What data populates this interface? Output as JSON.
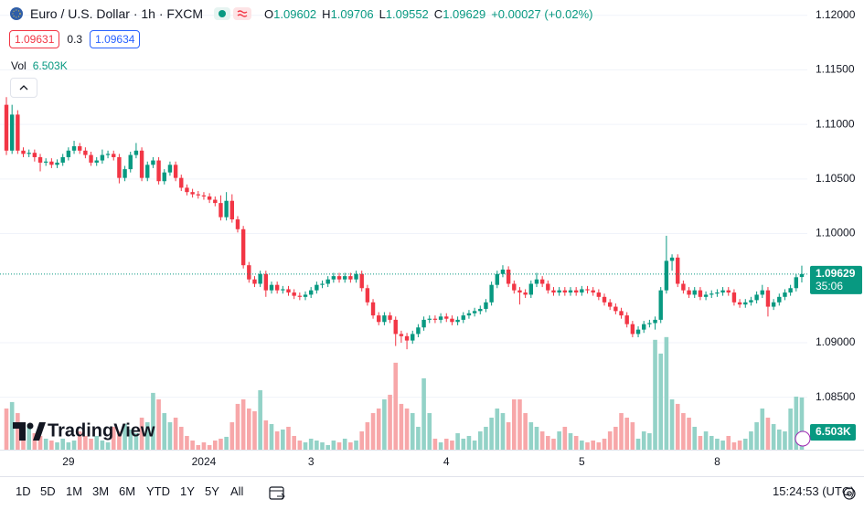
{
  "header": {
    "symbol": "Euro / U.S. Dollar · 1h · FXCM",
    "ohlc_labels": [
      "O",
      "H",
      "L",
      "C"
    ],
    "change": "+0.00027 (+0.02%)",
    "bid": 1.09631,
    "spread": 0.3,
    "ask": 1.09634,
    "volume_label": "Vol"
  },
  "logo": "TradingView",
  "toolbar": {
    "ranges": [
      "1D",
      "5D",
      "1M",
      "3M",
      "6M",
      "YTD",
      "1Y",
      "5Y",
      "All"
    ],
    "clock": "15:24:53 (UTC)"
  },
  "chart_data": {
    "type": "candlestick",
    "categories": [
      null,
      null,
      null,
      null,
      null,
      null,
      null,
      null,
      null,
      null,
      null,
      "29",
      null,
      null,
      null,
      null,
      null,
      null,
      null,
      null,
      null,
      null,
      null,
      null,
      null,
      null,
      null,
      null,
      null,
      null,
      null,
      null,
      null,
      null,
      null,
      "2024",
      null,
      null,
      null,
      null,
      null,
      null,
      null,
      null,
      null,
      null,
      null,
      null,
      null,
      null,
      null,
      null,
      null,
      null,
      "3",
      null,
      null,
      null,
      null,
      null,
      null,
      null,
      null,
      null,
      null,
      null,
      null,
      null,
      null,
      null,
      null,
      null,
      null,
      null,
      null,
      null,
      null,
      null,
      "4",
      null,
      null,
      null,
      null,
      null,
      null,
      null,
      null,
      null,
      null,
      null,
      null,
      null,
      null,
      null,
      null,
      null,
      null,
      null,
      null,
      null,
      null,
      null,
      "5",
      null,
      null,
      null,
      null,
      null,
      null,
      null,
      null,
      null,
      null,
      null,
      null,
      null,
      null,
      null,
      null,
      null,
      null,
      null,
      null,
      null,
      null,
      null,
      "8",
      null,
      null,
      null,
      null,
      null,
      null,
      null,
      null,
      null,
      null,
      null,
      null,
      null,
      null,
      null
    ],
    "open": [
      1.1118,
      1.1076,
      1.1109,
      1.1076,
      1.1073,
      1.1074,
      1.107,
      1.1065,
      1.1066,
      1.1063,
      1.1065,
      1.107,
      1.1076,
      1.108,
      1.1076,
      1.1072,
      1.1065,
      1.1067,
      1.1072,
      1.1073,
      1.107,
      1.1051,
      1.1059,
      1.1072,
      1.1076,
      1.1051,
      1.1063,
      1.1067,
      1.1048,
      1.1056,
      1.1063,
      1.1051,
      1.1042,
      1.1038,
      1.1036,
      1.1035,
      1.1034,
      1.1031,
      1.1028,
      1.1015,
      1.103,
      1.1013,
      1.1004,
      1.0971,
      1.0958,
      1.0954,
      1.0963,
      1.0948,
      1.0953,
      1.0948,
      1.0949,
      1.0946,
      1.0943,
      1.0942,
      1.0944,
      1.0948,
      1.0953,
      1.0954,
      1.0958,
      1.0961,
      1.0958,
      1.0961,
      1.0958,
      1.0963,
      1.095,
      1.0937,
      1.0925,
      1.0919,
      1.0925,
      1.0921,
      1.0908,
      1.0906,
      1.0902,
      1.0908,
      1.0914,
      1.0921,
      1.0922,
      1.0921,
      1.0924,
      1.0922,
      1.0919,
      1.0921,
      1.0925,
      1.0927,
      1.0929,
      1.0931,
      1.0937,
      1.0953,
      1.0963,
      1.0967,
      1.0954,
      1.0948,
      1.0946,
      1.0944,
      1.0954,
      1.0958,
      1.0954,
      1.0948,
      1.0946,
      1.0948,
      1.0946,
      1.0948,
      1.0946,
      1.0949,
      1.0948,
      1.0946,
      1.0942,
      1.0937,
      1.0933,
      1.0929,
      1.0925,
      1.0917,
      1.0908,
      1.0912,
      1.0917,
      1.0918,
      1.0921,
      1.0948,
      1.0975,
      1.0978,
      1.0954,
      1.0948,
      1.0944,
      1.0948,
      1.0942,
      1.0944,
      1.0945,
      1.0946,
      1.0948,
      1.0946,
      1.0937,
      1.0935,
      1.0937,
      1.0939,
      1.0944,
      1.0948,
      1.0933,
      1.0937,
      1.0942,
      1.0946,
      1.095,
      1.09602
    ],
    "high": [
      1.1125,
      1.1118,
      1.1113,
      1.1079,
      1.1077,
      1.1077,
      1.1073,
      1.1069,
      1.1069,
      1.1068,
      1.1073,
      1.1079,
      1.1085,
      1.1083,
      1.1079,
      1.1075,
      1.107,
      1.1077,
      1.1076,
      1.1076,
      1.1073,
      1.1062,
      1.1075,
      1.1083,
      1.1079,
      1.1066,
      1.107,
      1.107,
      1.1059,
      1.1066,
      1.1066,
      1.1054,
      1.1045,
      1.1041,
      1.1039,
      1.1038,
      1.1037,
      1.1034,
      1.1035,
      1.1038,
      1.1036,
      1.1016,
      1.1007,
      1.0974,
      1.0961,
      1.0966,
      1.0966,
      1.0956,
      1.0956,
      1.0952,
      1.0952,
      1.0949,
      1.0946,
      1.0947,
      1.0951,
      1.0956,
      1.0957,
      1.0961,
      1.0964,
      1.0964,
      1.0964,
      1.0964,
      1.0966,
      1.0966,
      1.0953,
      1.094,
      1.0928,
      1.0928,
      1.0928,
      1.0924,
      1.0911,
      1.0909,
      1.0911,
      1.0917,
      1.0924,
      1.0925,
      1.0925,
      1.0927,
      1.0927,
      1.0925,
      1.0924,
      1.0928,
      1.093,
      1.0932,
      1.0934,
      1.094,
      1.0956,
      1.0966,
      1.0971,
      1.097,
      1.0957,
      1.0951,
      1.0949,
      1.0957,
      1.0964,
      1.0961,
      1.0957,
      1.0951,
      1.0951,
      1.0951,
      1.0951,
      1.0951,
      1.0952,
      1.0952,
      1.0951,
      1.0949,
      1.0945,
      1.094,
      1.0936,
      1.0932,
      1.0928,
      1.092,
      1.0915,
      1.092,
      1.0921,
      1.0924,
      1.0951,
      1.0998,
      1.0981,
      1.0981,
      1.0957,
      1.0951,
      1.0951,
      1.0951,
      1.0947,
      1.0948,
      1.0949,
      1.0951,
      1.0951,
      1.0949,
      1.094,
      1.094,
      1.0942,
      1.0947,
      1.0953,
      1.0951,
      1.094,
      1.0945,
      1.0949,
      1.0953,
      1.0963,
      1.09706
    ],
    "low": [
      1.1072,
      1.1073,
      1.1073,
      1.107,
      1.107,
      1.1066,
      1.1057,
      1.1062,
      1.106,
      1.106,
      1.1062,
      1.1067,
      1.1073,
      1.1073,
      1.1069,
      1.1062,
      1.1062,
      1.1064,
      1.1069,
      1.1067,
      1.1046,
      1.1048,
      1.1056,
      1.1069,
      1.1048,
      1.1048,
      1.106,
      1.1045,
      1.1045,
      1.1053,
      1.1048,
      1.1039,
      1.1035,
      1.1033,
      1.1032,
      1.1031,
      1.1028,
      1.1025,
      1.1012,
      1.1012,
      1.101,
      1.1001,
      1.0968,
      1.0955,
      1.0951,
      1.0951,
      1.0942,
      1.0945,
      1.0945,
      1.0945,
      1.0943,
      1.094,
      1.0939,
      1.0939,
      1.0941,
      1.0945,
      1.095,
      1.0951,
      1.0955,
      1.0955,
      1.0955,
      1.0955,
      1.0955,
      1.0947,
      1.0934,
      1.0922,
      1.0916,
      1.0916,
      1.0918,
      1.0897,
      1.09,
      1.0894,
      1.0899,
      1.0905,
      1.0911,
      1.0918,
      1.0918,
      1.0918,
      1.0919,
      1.0916,
      1.0916,
      1.0918,
      1.0922,
      1.0924,
      1.0926,
      1.0928,
      1.0934,
      1.095,
      1.096,
      1.0951,
      1.0945,
      1.0935,
      1.0941,
      1.0941,
      1.0951,
      1.0951,
      1.0945,
      1.0943,
      1.0943,
      1.0943,
      1.0943,
      1.0943,
      1.0943,
      1.0945,
      1.0943,
      1.0939,
      1.0934,
      1.093,
      1.0926,
      1.0922,
      1.0914,
      1.0905,
      1.0905,
      1.0909,
      1.0914,
      1.0912,
      1.0918,
      1.0945,
      1.0966,
      1.0951,
      1.0945,
      1.0941,
      1.0941,
      1.0939,
      1.0939,
      1.0941,
      1.0942,
      1.0943,
      1.0943,
      1.0934,
      1.0932,
      1.0932,
      1.0934,
      1.0936,
      1.0941,
      1.0924,
      1.093,
      1.0934,
      1.0939,
      1.0943,
      1.0947,
      1.09552
    ],
    "close": [
      1.1076,
      1.1109,
      1.1076,
      1.1073,
      1.1074,
      1.107,
      1.1065,
      1.1066,
      1.1063,
      1.1065,
      1.107,
      1.1076,
      1.108,
      1.1076,
      1.1072,
      1.1065,
      1.1067,
      1.1072,
      1.1073,
      1.107,
      1.1051,
      1.1059,
      1.1072,
      1.1076,
      1.1051,
      1.1063,
      1.1067,
      1.1048,
      1.1056,
      1.1063,
      1.1051,
      1.1042,
      1.1038,
      1.1036,
      1.1035,
      1.1034,
      1.1031,
      1.1028,
      1.1015,
      1.103,
      1.1013,
      1.1004,
      1.0971,
      1.0958,
      1.0954,
      1.0963,
      1.0948,
      1.0953,
      1.0948,
      1.0949,
      1.0946,
      1.0943,
      1.0942,
      1.0944,
      1.0948,
      1.0953,
      1.0954,
      1.0958,
      1.0961,
      1.0958,
      1.0961,
      1.0958,
      1.0963,
      1.095,
      1.0937,
      1.0925,
      1.0919,
      1.0925,
      1.0921,
      1.0908,
      1.0906,
      1.0902,
      1.0908,
      1.0914,
      1.0921,
      1.0922,
      1.0921,
      1.0924,
      1.0922,
      1.0919,
      1.0921,
      1.0925,
      1.0927,
      1.0929,
      1.0931,
      1.0937,
      1.0953,
      1.0963,
      1.0967,
      1.0954,
      1.0948,
      1.0946,
      1.0944,
      1.0954,
      1.0958,
      1.0954,
      1.0948,
      1.0946,
      1.0948,
      1.0946,
      1.0948,
      1.0946,
      1.0949,
      1.0948,
      1.0946,
      1.0942,
      1.0937,
      1.0933,
      1.0929,
      1.0925,
      1.0917,
      1.0908,
      1.0912,
      1.0917,
      1.0918,
      1.0921,
      1.0948,
      1.0975,
      1.0978,
      1.0954,
      1.0948,
      1.0944,
      1.0948,
      1.0942,
      1.0944,
      1.0945,
      1.0946,
      1.0948,
      1.0946,
      1.0937,
      1.0935,
      1.0937,
      1.0939,
      1.0944,
      1.0948,
      1.0933,
      1.0937,
      1.0942,
      1.0946,
      1.095,
      1.096,
      1.09629
    ],
    "up_color": "#089981",
    "down_color": "#f23645",
    "ylim": [
      1.0802,
      1.1214
    ],
    "yticks": [
      {
        "value": 1.085,
        "label": "1.08500"
      },
      {
        "value": 1.09,
        "label": "1.09000"
      },
      {
        "value": 1.1,
        "label": "1.10000"
      },
      {
        "value": 1.105,
        "label": "1.10500"
      },
      {
        "value": 1.11,
        "label": "1.11000"
      },
      {
        "value": 1.115,
        "label": "1.11500"
      },
      {
        "value": 1.12,
        "label": "1.12000"
      }
    ],
    "grid": true,
    "countdown": "35:06",
    "volume": {
      "values": [
        5130,
        5930,
        4560,
        3420,
        3190,
        2050,
        1710,
        1370,
        1140,
        910,
        1370,
        910,
        1140,
        2280,
        1710,
        1370,
        1710,
        1140,
        910,
        2850,
        2280,
        3190,
        2510,
        2050,
        3990,
        3420,
        7070,
        6270,
        4560,
        3420,
        3990,
        2850,
        1710,
        1140,
        570,
        910,
        570,
        1140,
        1370,
        1600,
        3420,
        5700,
        6270,
        5130,
        4790,
        7410,
        3650,
        3190,
        2280,
        2510,
        2850,
        1710,
        1140,
        910,
        1370,
        1140,
        910,
        570,
        1140,
        910,
        1370,
        910,
        1140,
        2280,
        3420,
        4560,
        5130,
        6270,
        6840,
        10830,
        5700,
        5130,
        4560,
        2850,
        8890,
        4560,
        1370,
        910,
        1370,
        1140,
        2050,
        1370,
        1710,
        1140,
        2280,
        2850,
        3990,
        5130,
        4560,
        3420,
        6270,
        6270,
        4560,
        3420,
        2850,
        2280,
        1710,
        1370,
        2280,
        2850,
        2050,
        1710,
        1140,
        910,
        1140,
        910,
        1370,
        2280,
        2850,
        4560,
        3990,
        3420,
        1370,
        2280,
        2050,
        13680,
        11970,
        14020,
        6270,
        5700,
        4560,
        3990,
        2850,
        1710,
        2280,
        1710,
        1370,
        1140,
        1710,
        910,
        1140,
        1370,
        2280,
        3420,
        5130,
        3990,
        3190,
        2510,
        2280,
        5130,
        6610,
        6503
      ],
      "last_value_label": "6.503K",
      "ylim": [
        0,
        56000
      ],
      "up_color": "#93d2c7",
      "down_color": "#f7a7a9"
    }
  }
}
